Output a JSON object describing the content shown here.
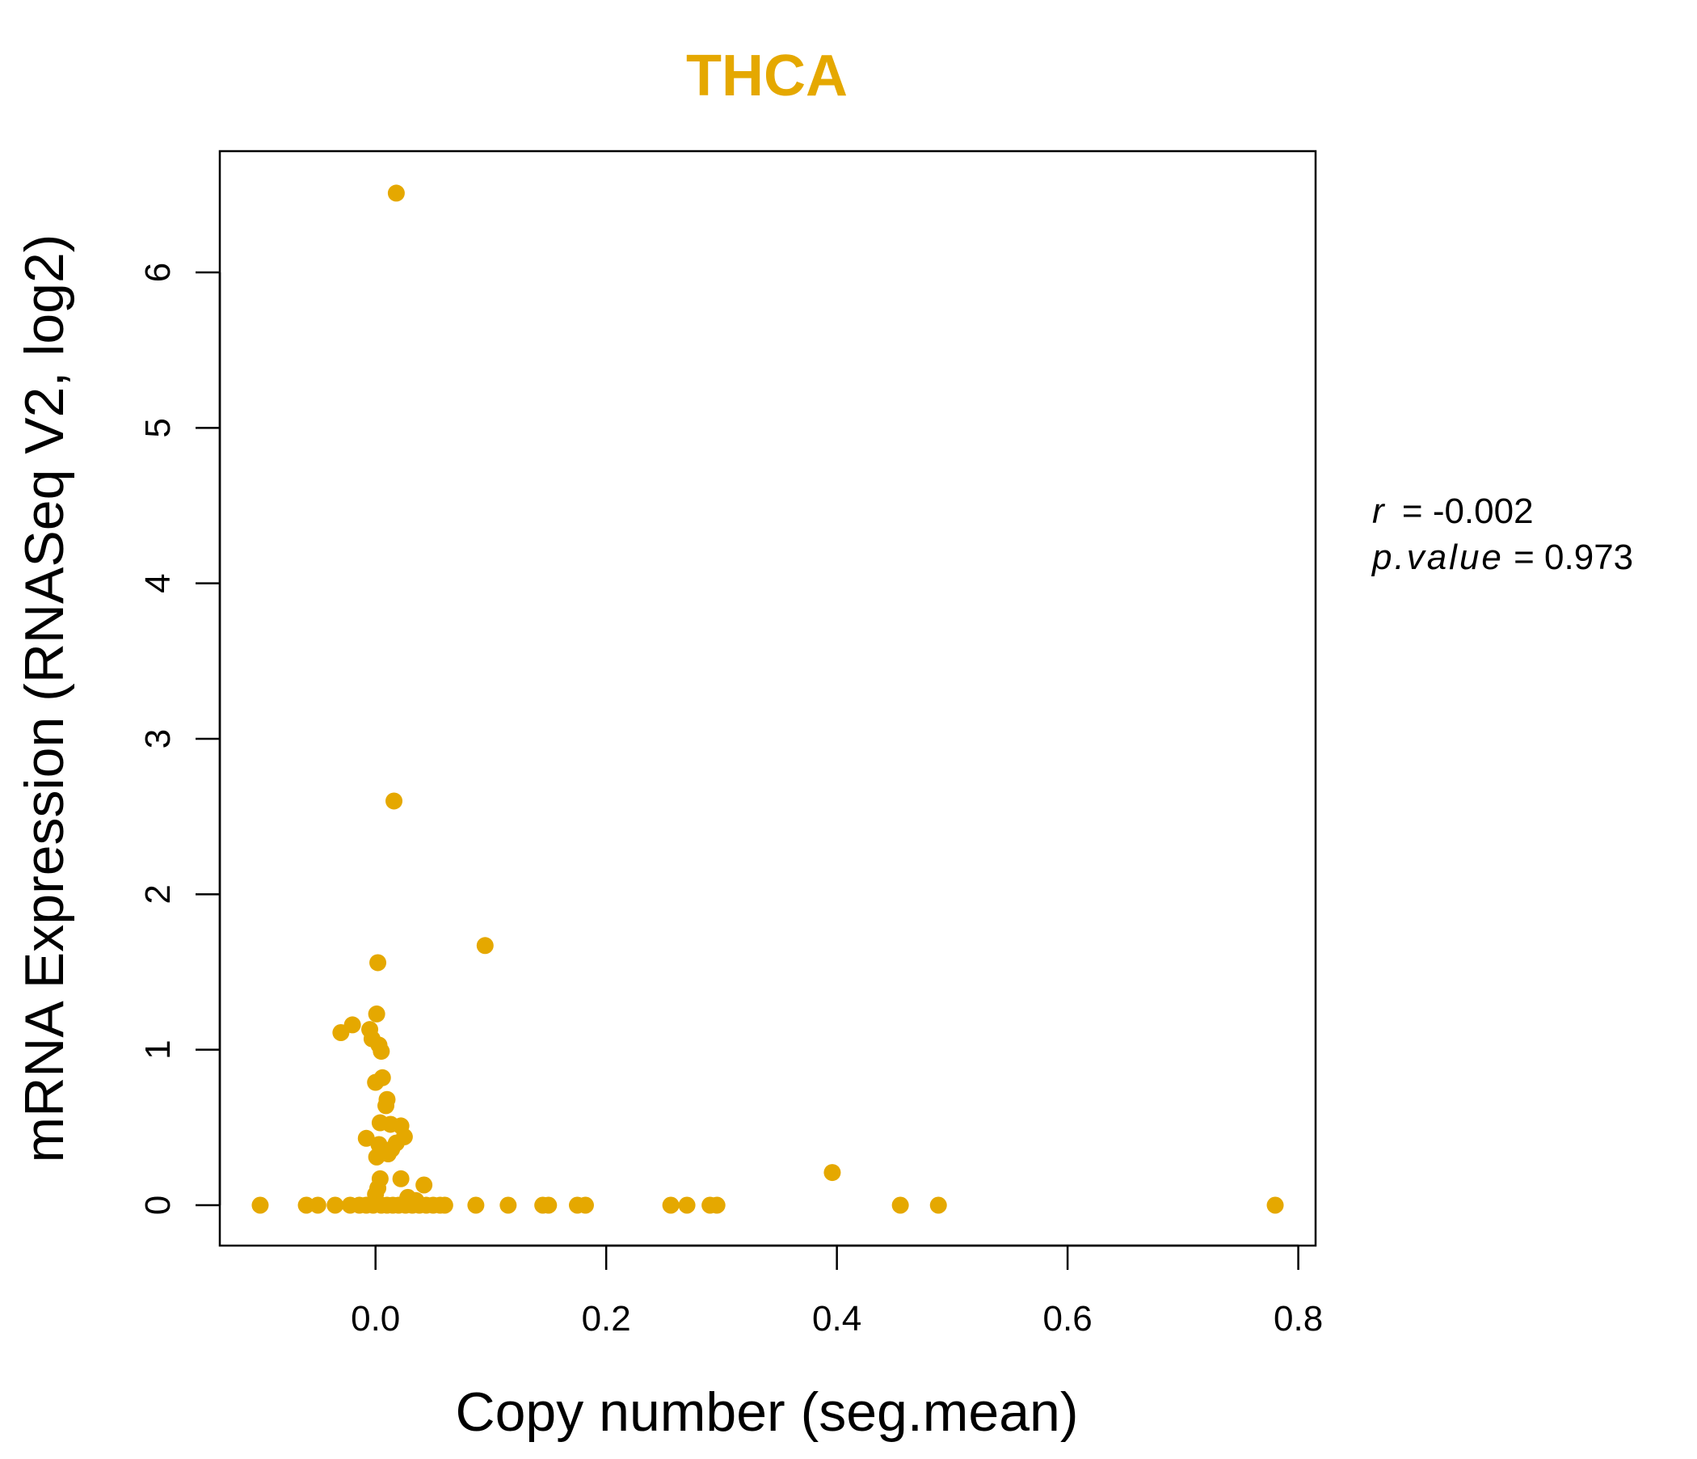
{
  "chart_data": {
    "type": "scatter",
    "title": "THCA",
    "xlabel": "Copy number (seg.mean)",
    "ylabel": "mRNA Expression (RNASeq V2, log2)",
    "xlim": [
      -0.135,
      0.815
    ],
    "ylim": [
      -0.26,
      6.78
    ],
    "x_ticks": [
      0.0,
      0.2,
      0.4,
      0.6,
      0.8
    ],
    "x_tick_labels": [
      "0.0",
      "0.2",
      "0.4",
      "0.6",
      "0.8"
    ],
    "y_ticks": [
      0,
      1,
      2,
      3,
      4,
      5,
      6
    ],
    "y_tick_labels": [
      "0",
      "1",
      "2",
      "3",
      "4",
      "5",
      "6"
    ],
    "grid": false,
    "color": "#E5A800",
    "stats": {
      "r_label": "r",
      "r_value": "-0.002",
      "p_label": "p.value",
      "p_value": "0.973"
    },
    "points": [
      {
        "x": 0.018,
        "y": 6.51
      },
      {
        "x": 0.016,
        "y": 2.6
      },
      {
        "x": 0.095,
        "y": 1.67
      },
      {
        "x": 0.002,
        "y": 1.56
      },
      {
        "x": 0.001,
        "y": 1.23
      },
      {
        "x": -0.02,
        "y": 1.16
      },
      {
        "x": -0.03,
        "y": 1.11
      },
      {
        "x": -0.005,
        "y": 1.13
      },
      {
        "x": -0.003,
        "y": 1.07
      },
      {
        "x": 0.003,
        "y": 1.03
      },
      {
        "x": 0.005,
        "y": 0.99
      },
      {
        "x": 0.006,
        "y": 0.82
      },
      {
        "x": 0.0,
        "y": 0.79
      },
      {
        "x": 0.01,
        "y": 0.68
      },
      {
        "x": 0.009,
        "y": 0.64
      },
      {
        "x": 0.004,
        "y": 0.53
      },
      {
        "x": 0.013,
        "y": 0.52
      },
      {
        "x": 0.022,
        "y": 0.51
      },
      {
        "x": 0.025,
        "y": 0.44
      },
      {
        "x": -0.008,
        "y": 0.43
      },
      {
        "x": 0.018,
        "y": 0.4
      },
      {
        "x": 0.003,
        "y": 0.39
      },
      {
        "x": 0.014,
        "y": 0.36
      },
      {
        "x": 0.011,
        "y": 0.33
      },
      {
        "x": 0.001,
        "y": 0.31
      },
      {
        "x": 0.396,
        "y": 0.21
      },
      {
        "x": 0.022,
        "y": 0.17
      },
      {
        "x": 0.004,
        "y": 0.17
      },
      {
        "x": 0.042,
        "y": 0.13
      },
      {
        "x": 0.002,
        "y": 0.11
      },
      {
        "x": 0.0,
        "y": 0.07
      },
      {
        "x": 0.028,
        "y": 0.05
      },
      {
        "x": 0.035,
        "y": 0.03
      },
      {
        "x": -0.1,
        "y": 0.0
      },
      {
        "x": -0.06,
        "y": 0.0
      },
      {
        "x": -0.05,
        "y": 0.0
      },
      {
        "x": -0.035,
        "y": 0.0
      },
      {
        "x": -0.022,
        "y": 0.0
      },
      {
        "x": -0.014,
        "y": 0.0
      },
      {
        "x": -0.008,
        "y": 0.0
      },
      {
        "x": -0.002,
        "y": 0.0
      },
      {
        "x": 0.005,
        "y": 0.0
      },
      {
        "x": 0.01,
        "y": 0.0
      },
      {
        "x": 0.015,
        "y": 0.0
      },
      {
        "x": 0.02,
        "y": 0.0
      },
      {
        "x": 0.026,
        "y": 0.0
      },
      {
        "x": 0.032,
        "y": 0.0
      },
      {
        "x": 0.038,
        "y": 0.0
      },
      {
        "x": 0.044,
        "y": 0.0
      },
      {
        "x": 0.05,
        "y": 0.0
      },
      {
        "x": 0.056,
        "y": 0.0
      },
      {
        "x": 0.06,
        "y": 0.0
      },
      {
        "x": 0.087,
        "y": 0.0
      },
      {
        "x": 0.115,
        "y": 0.0
      },
      {
        "x": 0.145,
        "y": 0.0
      },
      {
        "x": 0.15,
        "y": 0.0
      },
      {
        "x": 0.175,
        "y": 0.0
      },
      {
        "x": 0.182,
        "y": 0.0
      },
      {
        "x": 0.256,
        "y": 0.0
      },
      {
        "x": 0.27,
        "y": 0.0
      },
      {
        "x": 0.29,
        "y": 0.0
      },
      {
        "x": 0.296,
        "y": 0.0
      },
      {
        "x": 0.455,
        "y": 0.0
      },
      {
        "x": 0.488,
        "y": 0.0
      },
      {
        "x": 0.78,
        "y": 0.0
      }
    ]
  }
}
